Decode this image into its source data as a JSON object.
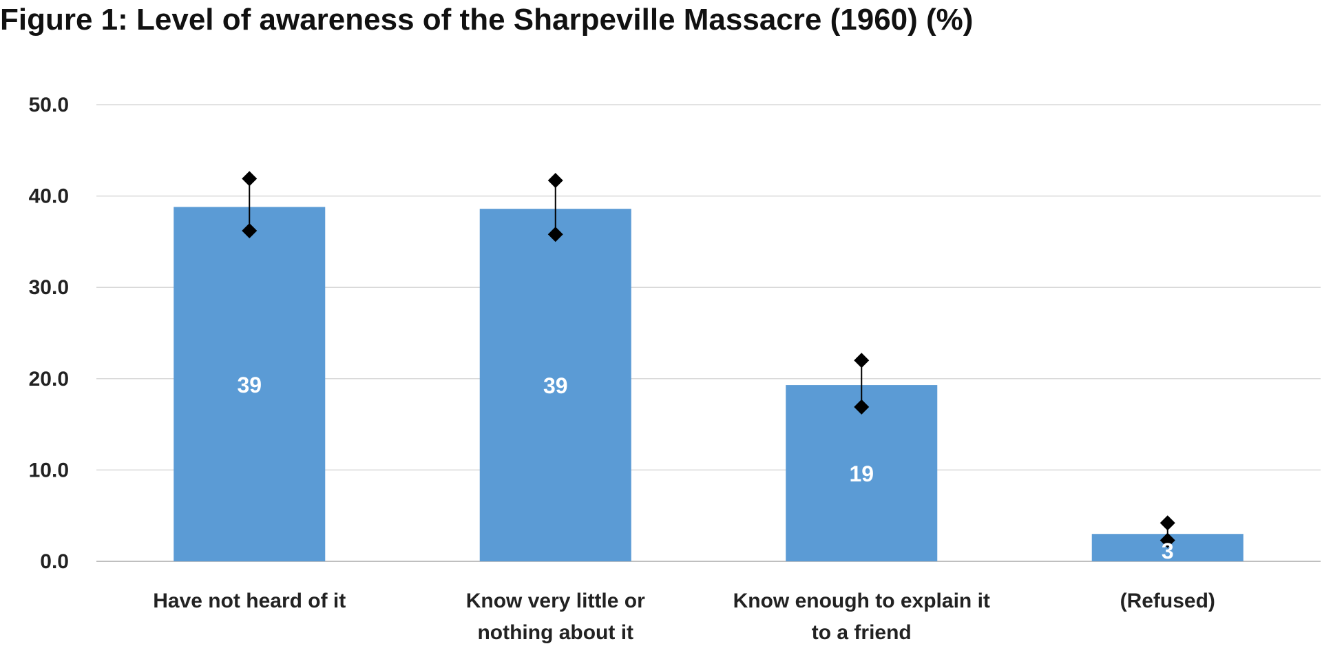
{
  "chart_data": {
    "type": "bar",
    "title": "Figure 1: Level of awareness of the Sharpeville Massacre (1960) (%)",
    "categories": [
      [
        "Have not heard of it"
      ],
      [
        "Know very little or",
        "nothing about it"
      ],
      [
        "Know enough to explain it",
        "to a friend"
      ],
      [
        "(Refused)"
      ]
    ],
    "values": [
      38.8,
      38.6,
      19.3,
      3.0
    ],
    "data_labels": [
      "39",
      "39",
      "19",
      "3"
    ],
    "error_bars": [
      {
        "low": 36.2,
        "high": 41.9
      },
      {
        "low": 35.8,
        "high": 41.7
      },
      {
        "low": 16.9,
        "high": 22.0
      },
      {
        "low": 2.3,
        "high": 4.2
      }
    ],
    "y_ticks": [
      "0.0",
      "10.0",
      "20.0",
      "30.0",
      "40.0",
      "50.0"
    ],
    "ylim": [
      0,
      50
    ],
    "xlabel": "",
    "ylabel": "",
    "grid": true,
    "legend": "none",
    "colors": {
      "bar": "#5B9BD5",
      "grid": "#D9D9D9",
      "axis": "#BFBFBF",
      "error": "#000000"
    }
  }
}
